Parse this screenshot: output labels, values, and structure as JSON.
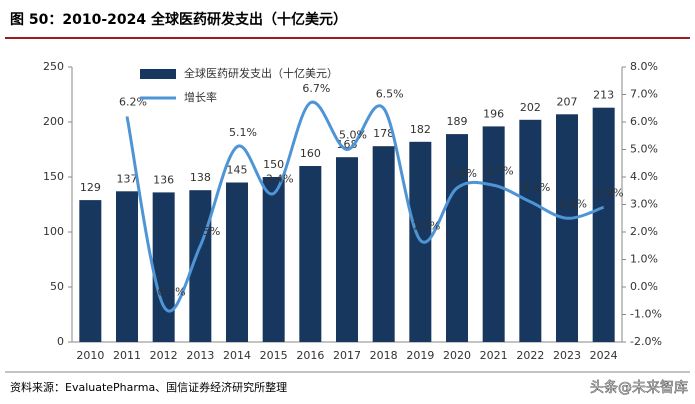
{
  "header": {
    "title": "图 50：2010-2024 全球医药研发支出（十亿美元）"
  },
  "chart_data": {
    "type": "bar-line",
    "categories": [
      "2010",
      "2011",
      "2012",
      "2013",
      "2014",
      "2015",
      "2016",
      "2017",
      "2018",
      "2019",
      "2020",
      "2021",
      "2022",
      "2023",
      "2024"
    ],
    "series": [
      {
        "name": "全球医药研发支出（十亿美元）",
        "color": "#17375e",
        "type": "bar",
        "values": [
          129,
          137,
          136,
          138,
          145,
          150,
          160,
          168,
          178,
          182,
          189,
          196,
          202,
          207,
          213
        ]
      },
      {
        "name": "增长率",
        "color": "#4f94d4",
        "type": "line",
        "axis": "y2",
        "values": [
          null,
          6.2,
          -0.7,
          1.5,
          5.1,
          3.4,
          6.7,
          5.0,
          6.5,
          1.7,
          3.6,
          3.7,
          3.1,
          2.5,
          2.9
        ],
        "value_labels": [
          null,
          "6.2%",
          "-0.7%",
          "1.5%",
          "5.1%",
          "3.4%",
          "6.7%",
          "5.0%",
          "6.5%",
          "1.7%",
          "3.6%",
          "3.7%",
          "3.1%",
          "2.5%",
          "2.9%"
        ]
      }
    ],
    "ylim": [
      0,
      250
    ],
    "yticks": [
      0,
      50,
      100,
      150,
      200,
      250
    ],
    "y2lim": [
      -2,
      8
    ],
    "y2ticks": [
      {
        "value": -2,
        "label": "-2.0%"
      },
      {
        "value": -1,
        "label": "-1.0%"
      },
      {
        "value": 0,
        "label": "0.0%"
      },
      {
        "value": 1,
        "label": "1.0%"
      },
      {
        "value": 2,
        "label": "2.0%"
      },
      {
        "value": 3,
        "label": "3.0%"
      },
      {
        "value": 4,
        "label": "4.0%"
      },
      {
        "value": 5,
        "label": "5.0%"
      },
      {
        "value": 6,
        "label": "6.0%"
      },
      {
        "value": 7,
        "label": "7.0%"
      },
      {
        "value": 8,
        "label": "8.0%"
      }
    ],
    "grid": false,
    "legend": "top-left"
  },
  "footer": {
    "source": "资料来源：EvaluatePharma、国信证券经济研究所整理",
    "watermark": "头条@未来智库"
  }
}
